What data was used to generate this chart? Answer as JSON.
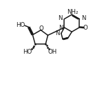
{
  "bg_color": "#ffffff",
  "line_color": "#1a1a1a",
  "line_width": 1.1,
  "font_size": 6.2,
  "fig_width": 1.51,
  "fig_height": 1.25,
  "dpi": 100,
  "xlim": [
    0,
    10
  ],
  "ylim": [
    0,
    10
  ]
}
